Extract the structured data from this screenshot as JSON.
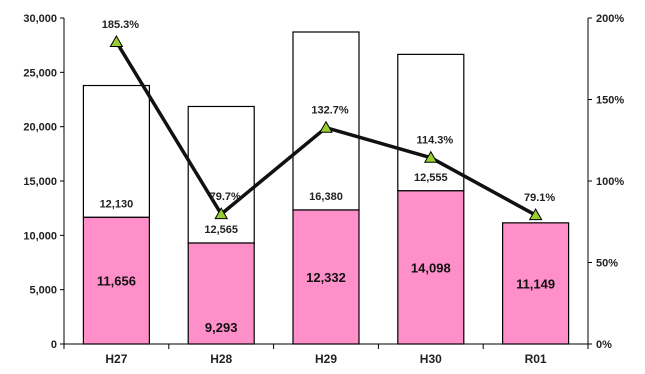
{
  "chart_data": {
    "type": "bar",
    "title": "",
    "categories": [
      "H27",
      "H28",
      "H29",
      "H30",
      "R01"
    ],
    "series": [
      {
        "values": [
          11656,
          9293,
          12332,
          14098,
          11149
        ],
        "color": "#ff8fc8"
      },
      {
        "values": [
          12130,
          12565,
          16380,
          12555,
          null
        ],
        "color": "#ffffff"
      },
      {
        "values": [
          185.3,
          79.7,
          132.7,
          114.3,
          79.1
        ],
        "color": "#111111",
        "type": "line",
        "axis": "right"
      }
    ],
    "value_labels": {
      "lower": [
        "11,656",
        "9,293",
        "12,332",
        "14,098",
        "11,149"
      ],
      "upper": [
        "12,130",
        "12,565",
        "16,380",
        "12,555",
        ""
      ],
      "percent": [
        "185.3%",
        "79.7%",
        "132.7%",
        "114.3%",
        "79.1%"
      ]
    },
    "y_left": {
      "ylim": [
        0,
        30000
      ],
      "ticks": [
        "0",
        "5,000",
        "10,000",
        "15,000",
        "20,000",
        "25,000",
        "30,000"
      ],
      "tick_values": [
        0,
        5000,
        10000,
        15000,
        20000,
        25000,
        30000
      ]
    },
    "y_right": {
      "ylim": [
        0,
        200
      ],
      "ticks": [
        "0%",
        "50%",
        "100%",
        "150%",
        "200%"
      ],
      "tick_values": [
        0,
        50,
        100,
        150,
        200
      ]
    },
    "grid": false,
    "legend": "none",
    "marker_color": "#9acd32"
  }
}
